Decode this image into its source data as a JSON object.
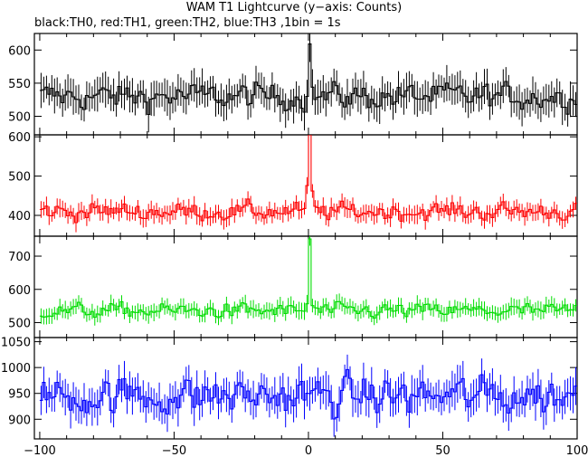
{
  "chart_data": {
    "type": "line",
    "title": "WAM T1 Lightcurve (y−axis: Counts)",
    "subtitle": "black:TH0, red:TH1, green:TH2, blue:TH3 ,1bin = 1s",
    "xlim": [
      -102,
      100
    ],
    "xticks": [
      -100,
      -50,
      0,
      50,
      100
    ],
    "xtick_labels": [
      "−100",
      "−50",
      "0",
      "50",
      "100"
    ],
    "panels": [
      {
        "name": "TH0",
        "color": "#000000",
        "ylim": [
          472,
          625
        ],
        "yticks": [
          500,
          550,
          600
        ],
        "ytick_labels": [
          "500",
          "550",
          "600"
        ],
        "baseline": 530,
        "noise": 16,
        "err": 22,
        "peak": 622,
        "peak_width": 0.8
      },
      {
        "name": "TH1",
        "color": "#ff0000",
        "ylim": [
          347,
          605
        ],
        "yticks": [
          400,
          500,
          600
        ],
        "ytick_labels": [
          "400",
          "500",
          "600"
        ],
        "baseline": 410,
        "noise": 18,
        "err": 20,
        "peak": 605,
        "peak_width": 1.2
      },
      {
        "name": "TH2",
        "color": "#00dd00",
        "ylim": [
          455,
          760
        ],
        "yticks": [
          500,
          600,
          700
        ],
        "ytick_labels": [
          "500",
          "600",
          "700"
        ],
        "baseline": 535,
        "noise": 18,
        "err": 22,
        "peak": 750,
        "peak_width": 0.9
      },
      {
        "name": "TH3",
        "color": "#0000ff",
        "ylim": [
          862,
          1058
        ],
        "yticks": [
          900,
          950,
          1000,
          1050
        ],
        "ytick_labels": [
          "900",
          "950",
          "1000",
          "1050"
        ],
        "baseline": 945,
        "noise": 30,
        "err": 30,
        "peak": 0,
        "peak_width": 0
      }
    ]
  }
}
